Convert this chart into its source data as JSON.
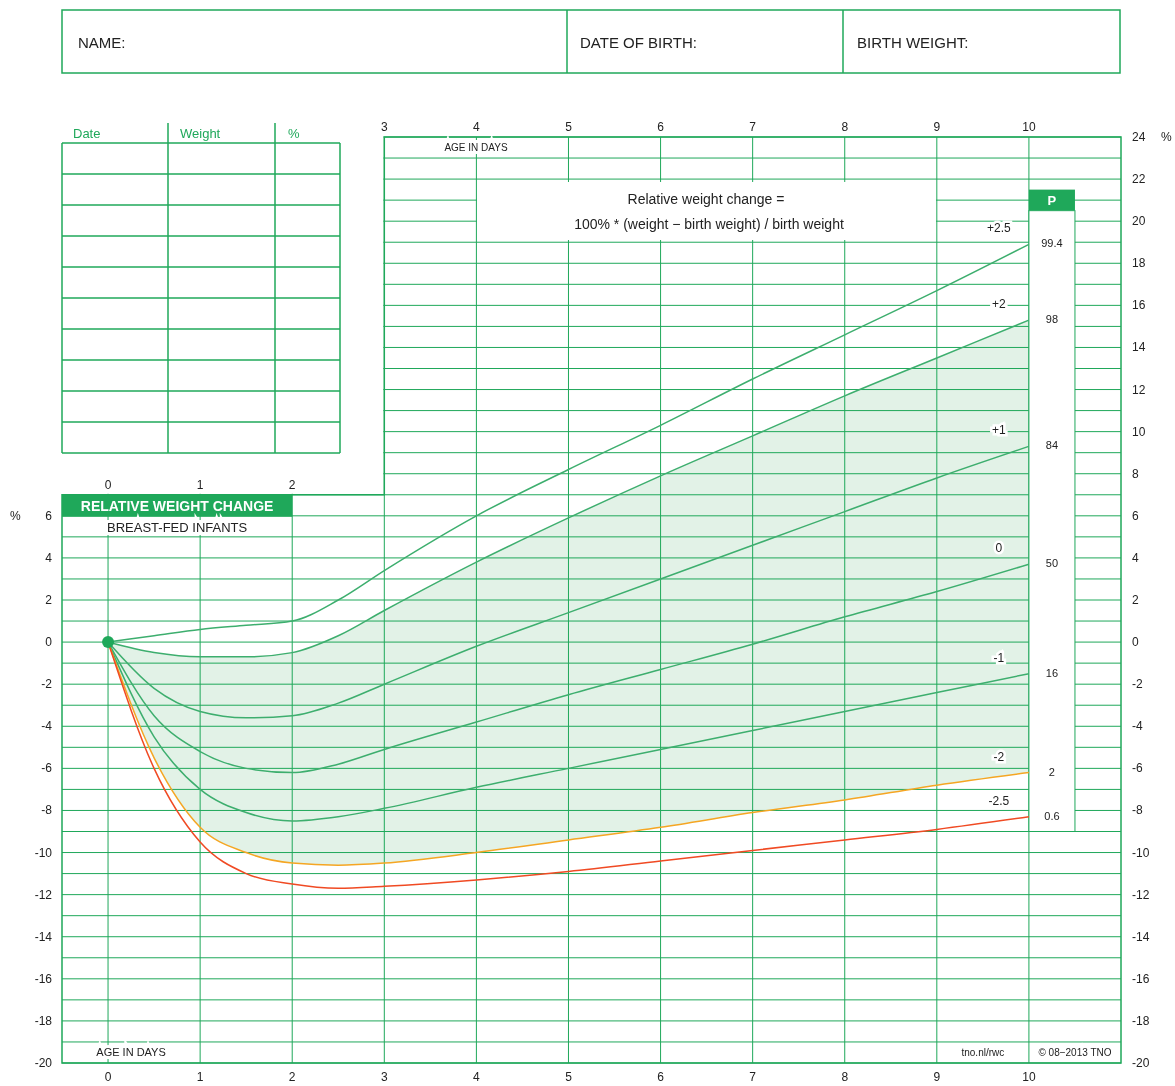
{
  "chart_data": {
    "type": "line",
    "title": "RELATIVE WEIGHT CHANGE",
    "subtitle": "BREAST-FED INFANTS",
    "xlabel": "AGE IN DAYS",
    "x2label": "AGE IN DAYS",
    "ylabel": "%",
    "y2label": "%",
    "x": [
      0,
      0.5,
      1,
      1.5,
      2,
      2.5,
      3,
      4,
      5,
      6,
      7,
      8,
      9,
      10
    ],
    "series": [
      {
        "name": "+2.5",
        "color": "#3dae6e",
        "values": [
          0,
          0.3,
          0.6,
          0.8,
          1.0,
          2.0,
          3.4,
          6.0,
          8.2,
          10.3,
          12.5,
          14.6,
          16.7,
          18.9
        ]
      },
      {
        "name": "+2",
        "color": "#3dae6e",
        "values": [
          0,
          -0.5,
          -0.7,
          -0.7,
          -0.5,
          0.3,
          1.5,
          3.8,
          5.9,
          7.9,
          9.8,
          11.7,
          13.5,
          15.3
        ]
      },
      {
        "name": "+1",
        "color": "#3dae6e",
        "values": [
          0,
          -2.2,
          -3.3,
          -3.6,
          -3.5,
          -2.9,
          -2.0,
          -0.2,
          1.4,
          3.0,
          4.6,
          6.2,
          7.8,
          9.3
        ]
      },
      {
        "name": "0",
        "color": "#3dae6e",
        "values": [
          0,
          -3.5,
          -5.2,
          -6.0,
          -6.2,
          -5.8,
          -5.1,
          -3.8,
          -2.5,
          -1.3,
          -0.1,
          1.2,
          2.4,
          3.7
        ],
        "lower": [
          0,
          -5.5,
          -8.8,
          -10.0,
          -10.5,
          -10.6,
          -10.5,
          -10.0,
          -9.4,
          -8.8,
          -8.1,
          -7.5,
          -6.8,
          -6.2
        ],
        "upper": [
          0,
          -0.5,
          -0.7,
          -0.7,
          -0.5,
          0.3,
          1.5,
          3.8,
          5.9,
          7.9,
          9.8,
          11.7,
          13.5,
          15.3
        ]
      },
      {
        "name": "-1",
        "color": "#3dae6e",
        "values": [
          0,
          -4.5,
          -7.0,
          -8.1,
          -8.5,
          -8.3,
          -7.9,
          -6.9,
          -6.0,
          -5.1,
          -4.2,
          -3.3,
          -2.4,
          -1.5
        ]
      },
      {
        "name": "-2",
        "color": "#f5a623",
        "values": [
          0,
          -5.5,
          -8.8,
          -10.0,
          -10.5,
          -10.6,
          -10.5,
          -10.0,
          -9.4,
          -8.8,
          -8.1,
          -7.5,
          -6.8,
          -6.2
        ]
      },
      {
        "name": "-2.5",
        "color": "#f04a23",
        "values": [
          0,
          -6.0,
          -9.5,
          -11.0,
          -11.5,
          -11.7,
          -11.6,
          -11.3,
          -10.9,
          -10.4,
          -9.9,
          -9.4,
          -8.9,
          -8.3
        ]
      },
      {
        "type": "scatter",
        "marker": "circle",
        "color": "#1fa85a",
        "x": [
          0
        ],
        "values": [
          0
        ]
      }
    ],
    "xlim": [
      -0.5,
      11
    ],
    "xticks": [
      0,
      1,
      2,
      3,
      4,
      5,
      6,
      7,
      8,
      9,
      10
    ],
    "x2lim": [
      -0.5,
      11
    ],
    "x2ticks": [
      3,
      4,
      5,
      6,
      7,
      8,
      9,
      10
    ],
    "ylim": [
      -20,
      24
    ],
    "yticks": [
      -20,
      {
        "value": -19,
        "label": null
      },
      -18,
      {
        "value": -17,
        "label": null
      },
      -16,
      {
        "value": -15,
        "label": null
      },
      -14,
      {
        "value": -13,
        "label": null
      },
      -12,
      {
        "value": -11,
        "label": null
      },
      -10,
      {
        "value": -9,
        "label": null
      },
      -8,
      {
        "value": -7,
        "label": null
      },
      -6,
      {
        "value": -5,
        "label": null
      },
      -4,
      {
        "value": -3,
        "label": null
      },
      -2,
      {
        "value": -1,
        "label": null
      },
      0,
      {
        "value": 1,
        "label": null
      },
      2,
      {
        "value": 3,
        "label": null
      },
      4,
      {
        "value": 5,
        "label": null
      },
      6,
      {
        "value": 7,
        "label": null
      },
      {
        "value": 8,
        "label": null
      },
      {
        "value": 9,
        "label": null
      },
      {
        "value": 10,
        "label": null
      },
      {
        "value": 11,
        "label": null
      },
      {
        "value": 12,
        "label": null
      },
      {
        "value": 13,
        "label": null
      },
      {
        "value": 14,
        "label": null
      },
      {
        "value": 15,
        "label": null
      },
      {
        "value": 16,
        "label": null
      },
      {
        "value": 17,
        "label": null
      },
      {
        "value": 18,
        "label": null
      },
      {
        "value": 19,
        "label": null
      },
      {
        "value": 20,
        "label": null
      },
      {
        "value": 21,
        "label": null
      },
      {
        "value": 22,
        "label": null
      },
      {
        "value": 23,
        "label": null
      },
      {
        "value": 24,
        "label": null
      }
    ],
    "y2lim": [
      -20,
      24
    ],
    "y2ticks": [
      -20,
      -18,
      -16,
      -14,
      -12,
      -10,
      -8,
      -6,
      -4,
      -2,
      0,
      2,
      4,
      6,
      8,
      10,
      12,
      14,
      16,
      18,
      20,
      22,
      24
    ],
    "grid": true,
    "legend": false,
    "marker": "none",
    "line_style": "solid",
    "annotations": [
      "NAME:",
      "DATE OF BIRTH:",
      "BIRTH WEIGHT:",
      "Date",
      "Weight",
      "%",
      "Relative weight change =",
      "100% * (weight − birth weight) / birth weight",
      "P",
      "tno.nl/rwc",
      "© 08−2013 TNO",
      "99.4",
      "98",
      "84",
      "50",
      "16",
      "2",
      "0.6",
      "0",
      "1",
      "2"
    ]
  }
}
